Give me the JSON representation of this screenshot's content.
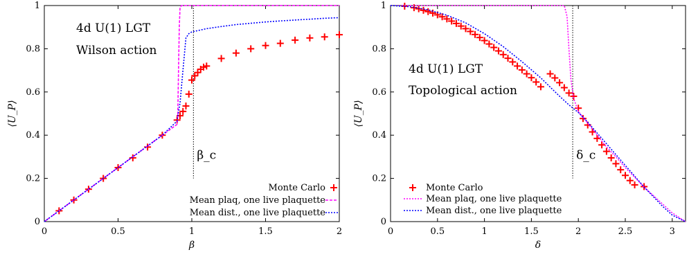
{
  "chart_data": [
    {
      "type": "scatter",
      "annotation_lines": [
        "4d U(1) LGT",
        "Wilson action"
      ],
      "xlabel": "β",
      "ylabel": "⟨U_P⟩",
      "xlim": [
        0,
        2
      ],
      "ylim": [
        0,
        1
      ],
      "xticks": [
        "0",
        "0.5",
        "1",
        "1.5",
        "2"
      ],
      "yticks": [
        "0",
        "0.2",
        "0.4",
        "0.6",
        "0.8",
        "1"
      ],
      "critical_label": "β_c",
      "critical_x": 1.011,
      "grid": false,
      "legend_position": "bottom-right",
      "series": [
        {
          "name": "Monte Carlo",
          "style": "markers",
          "color": "#ff0000",
          "x": [
            0.1,
            0.2,
            0.3,
            0.4,
            0.5,
            0.6,
            0.7,
            0.8,
            0.9,
            0.92,
            0.94,
            0.96,
            0.98,
            1.0,
            1.02,
            1.04,
            1.06,
            1.08,
            1.1,
            1.2,
            1.3,
            1.4,
            1.5,
            1.6,
            1.7,
            1.8,
            1.9,
            2.0
          ],
          "y": [
            0.05,
            0.1,
            0.15,
            0.2,
            0.25,
            0.295,
            0.345,
            0.4,
            0.47,
            0.49,
            0.51,
            0.535,
            0.59,
            0.655,
            0.675,
            0.69,
            0.705,
            0.715,
            0.72,
            0.755,
            0.78,
            0.8,
            0.815,
            0.825,
            0.84,
            0.85,
            0.855,
            0.865
          ]
        },
        {
          "name": "Mean plaq, one live plaquette",
          "style": "dashed",
          "color": "#ff00ff",
          "x": [
            0,
            0.1,
            0.2,
            0.3,
            0.4,
            0.5,
            0.6,
            0.7,
            0.8,
            0.9,
            0.905,
            0.91,
            0.915,
            0.92,
            0.93,
            0.95,
            1.0,
            1.5,
            2.0
          ],
          "y": [
            0,
            0.05,
            0.1,
            0.15,
            0.2,
            0.25,
            0.3,
            0.35,
            0.4,
            0.45,
            0.5,
            0.7,
            0.9,
            0.99,
            1.0,
            1.0,
            1.0,
            1.0,
            1.0
          ]
        },
        {
          "name": "Mean dist., one live plaquette",
          "style": "dotted",
          "color": "#0000ff",
          "x": [
            0,
            0.1,
            0.2,
            0.3,
            0.4,
            0.5,
            0.6,
            0.7,
            0.8,
            0.9,
            0.92,
            0.94,
            0.96,
            0.98,
            1.0,
            1.1,
            1.2,
            1.3,
            1.4,
            1.5,
            1.6,
            1.7,
            1.8,
            1.9,
            2.0
          ],
          "y": [
            0,
            0.05,
            0.1,
            0.15,
            0.2,
            0.25,
            0.3,
            0.35,
            0.4,
            0.465,
            0.55,
            0.7,
            0.85,
            0.87,
            0.878,
            0.893,
            0.903,
            0.912,
            0.918,
            0.924,
            0.929,
            0.933,
            0.937,
            0.941,
            0.944
          ]
        }
      ]
    },
    {
      "type": "scatter",
      "annotation_lines": [
        "4d U(1) LGT",
        "Topological action"
      ],
      "xlabel": "δ",
      "ylabel": "⟨U_P⟩",
      "xlim": [
        0,
        3.14159
      ],
      "ylim": [
        0,
        1
      ],
      "xticks": [
        "0",
        "0.5",
        "1",
        "1.5",
        "2",
        "2.5",
        "3"
      ],
      "yticks": [
        "0",
        "0.2",
        "0.4",
        "0.6",
        "0.8",
        "1"
      ],
      "critical_label": "δ_c",
      "critical_x": 1.94,
      "grid": false,
      "legend_position": "bottom-left",
      "series": [
        {
          "name": "Monte Carlo",
          "style": "markers",
          "color": "#ff0000",
          "x": [
            0.15,
            0.25,
            0.3,
            0.35,
            0.4,
            0.45,
            0.5,
            0.55,
            0.6,
            0.65,
            0.7,
            0.75,
            0.8,
            0.85,
            0.9,
            0.95,
            1.0,
            1.05,
            1.1,
            1.15,
            1.2,
            1.25,
            1.3,
            1.35,
            1.4,
            1.45,
            1.5,
            1.55,
            1.6,
            1.7,
            1.75,
            1.8,
            1.85,
            1.9,
            1.95,
            2.0,
            2.05,
            2.1,
            2.15,
            2.2,
            2.25,
            2.3,
            2.35,
            2.4,
            2.45,
            2.5,
            2.55,
            2.6,
            2.7
          ],
          "y": [
            0.997,
            0.99,
            0.985,
            0.978,
            0.972,
            0.965,
            0.957,
            0.948,
            0.938,
            0.928,
            0.917,
            0.905,
            0.893,
            0.88,
            0.866,
            0.852,
            0.838,
            0.822,
            0.806,
            0.79,
            0.773,
            0.756,
            0.739,
            0.72,
            0.702,
            0.684,
            0.666,
            0.646,
            0.624,
            0.684,
            0.665,
            0.643,
            0.62,
            0.595,
            0.58,
            0.525,
            0.477,
            0.447,
            0.415,
            0.385,
            0.355,
            0.325,
            0.295,
            0.268,
            0.24,
            0.214,
            0.19,
            0.17,
            0.162
          ]
        },
        {
          "name": "Mean plaq, one live plaquette",
          "style": "dotted",
          "color": "#ff00ff",
          "x": [
            0,
            0.5,
            1.0,
            1.5,
            1.85,
            1.88,
            1.9,
            1.92,
            1.95,
            2.0,
            2.1,
            2.2,
            2.3,
            2.4,
            2.5,
            2.6,
            2.7,
            2.8,
            2.9,
            3.0,
            3.14
          ],
          "y": [
            1.0,
            1.0,
            1.0,
            1.0,
            1.0,
            0.95,
            0.8,
            0.66,
            0.57,
            0.51,
            0.455,
            0.4,
            0.345,
            0.3,
            0.25,
            0.205,
            0.16,
            0.12,
            0.08,
            0.04,
            0.0
          ]
        },
        {
          "name": "Mean dist., one live plaquette",
          "style": "dotted",
          "color": "#0000ff",
          "x": [
            0,
            0.2,
            0.4,
            0.6,
            0.8,
            1.0,
            1.2,
            1.4,
            1.6,
            1.8,
            1.9,
            2.0,
            2.1,
            2.2,
            2.3,
            2.4,
            2.5,
            2.6,
            2.7,
            2.8,
            2.9,
            3.0,
            3.14
          ],
          "y": [
            1.0,
            0.995,
            0.98,
            0.955,
            0.92,
            0.87,
            0.81,
            0.74,
            0.665,
            0.58,
            0.54,
            0.505,
            0.46,
            0.41,
            0.36,
            0.31,
            0.26,
            0.21,
            0.16,
            0.115,
            0.07,
            0.03,
            0.0
          ]
        }
      ]
    }
  ]
}
